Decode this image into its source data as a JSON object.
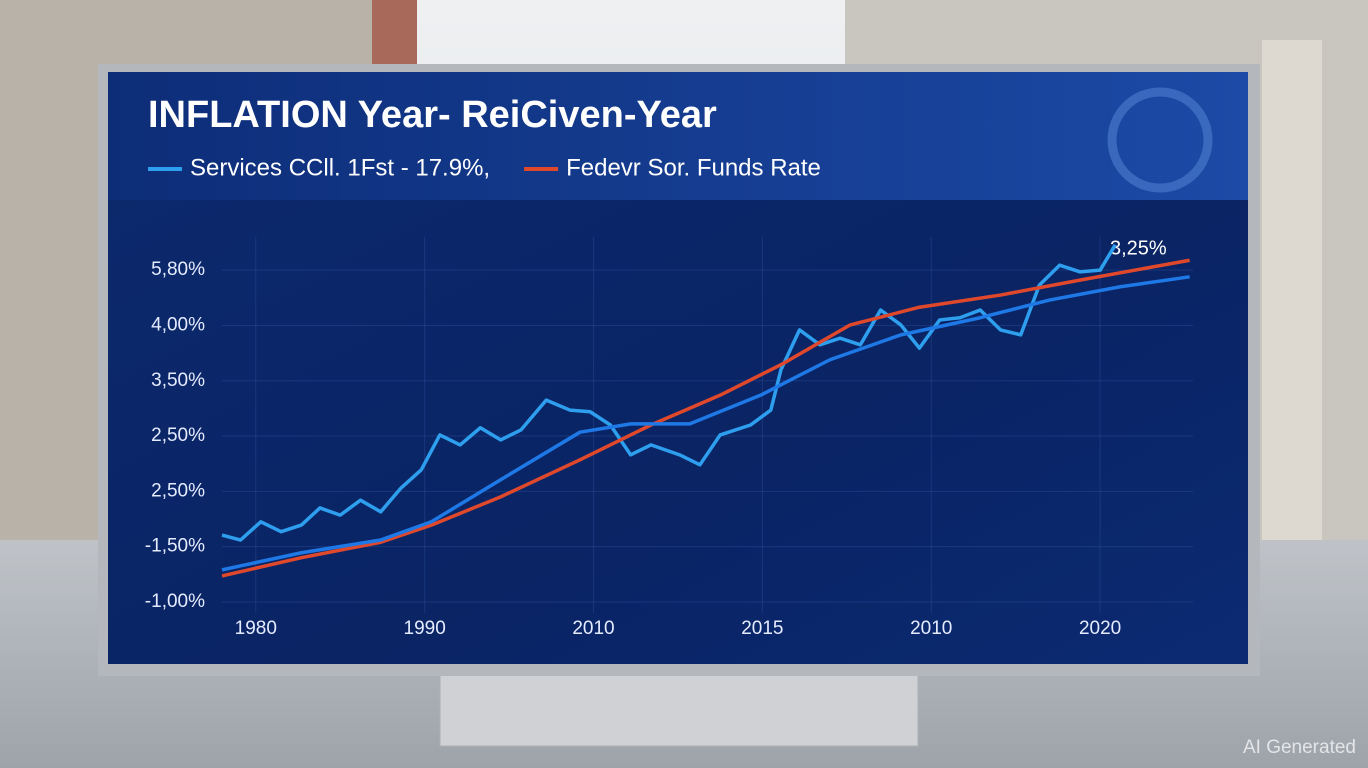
{
  "chart_data": {
    "type": "line",
    "title": "INFLATION Year- ReiCiven-Year",
    "annotation": "3,25%",
    "watermark": "AI Generated",
    "categories": [
      "1980",
      "1990",
      "2010",
      "2015",
      "2010",
      "2020"
    ],
    "xlim": [
      -0.2,
      5.55
    ],
    "ylim": [
      -0.2,
      6.6
    ],
    "yticks": [
      {
        "value": 0,
        "label": "-1,00%"
      },
      {
        "value": 1,
        "label": "-1,50%"
      },
      {
        "value": 2,
        "label": "2,50%"
      },
      {
        "value": 3,
        "label": "2,50%"
      },
      {
        "value": 4,
        "label": "3,50%"
      },
      {
        "value": 5,
        "label": "4,00%"
      },
      {
        "value": 6,
        "label": "5,80%"
      }
    ],
    "grid": true,
    "series": [
      {
        "name": "Services CCll. 1Fst - 17.9%,",
        "color": "#2e9fee",
        "x": [
          -0.2,
          -0.09,
          0.03,
          0.15,
          0.27,
          0.38,
          0.5,
          0.62,
          0.74,
          0.86,
          0.98,
          1.09,
          1.21,
          1.33,
          1.45,
          1.57,
          1.72,
          1.86,
          1.98,
          2.1,
          2.22,
          2.34,
          2.51,
          2.63,
          2.75,
          2.93,
          3.05,
          3.11,
          3.22,
          3.34,
          3.46,
          3.58,
          3.7,
          3.82,
          3.93,
          4.05,
          4.17,
          4.29,
          4.41,
          4.53,
          4.64,
          4.76,
          4.88,
          5.0,
          5.09
        ],
        "values": [
          1.21,
          1.12,
          1.45,
          1.27,
          1.39,
          1.7,
          1.57,
          1.84,
          1.63,
          2.06,
          2.39,
          3.02,
          2.84,
          3.15,
          2.93,
          3.11,
          3.65,
          3.47,
          3.44,
          3.2,
          2.66,
          2.84,
          2.66,
          2.48,
          3.02,
          3.2,
          3.47,
          4.2,
          4.92,
          4.65,
          4.77,
          4.65,
          5.28,
          5.01,
          4.59,
          5.1,
          5.14,
          5.28,
          4.92,
          4.83,
          5.73,
          6.09,
          5.97,
          6.0,
          6.46
        ]
      },
      {
        "name": "Fedevr Sor. Funds Rate",
        "color": "#e0482c",
        "x": [
          -0.2,
          0.27,
          0.74,
          1.04,
          1.45,
          1.92,
          2.34,
          2.75,
          3.11,
          3.52,
          3.93,
          4.41,
          4.88,
          5.53
        ],
        "values": [
          0.47,
          0.8,
          1.08,
          1.39,
          1.9,
          2.57,
          3.2,
          3.74,
          4.29,
          5.01,
          5.33,
          5.55,
          5.82,
          6.18
        ]
      },
      {
        "color": "#1e78e6",
        "x": [
          -0.2,
          0.27,
          0.74,
          1.04,
          1.45,
          1.92,
          2.22,
          2.57,
          2.99,
          3.4,
          3.82,
          4.29,
          4.7,
          5.12,
          5.53
        ],
        "values": [
          0.58,
          0.89,
          1.12,
          1.45,
          2.21,
          3.07,
          3.22,
          3.22,
          3.74,
          4.38,
          4.83,
          5.14,
          5.46,
          5.7,
          5.88
        ]
      }
    ]
  }
}
